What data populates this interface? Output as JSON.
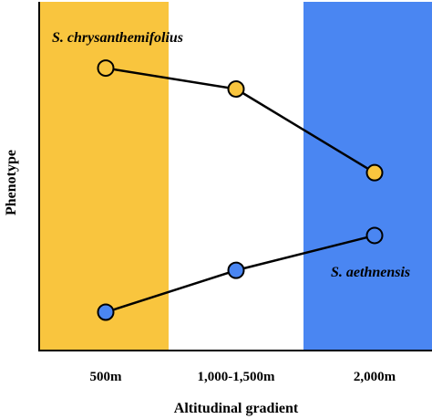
{
  "chart_data": {
    "type": "line",
    "categories": [
      "500m",
      "1,000-1,500m",
      "2,000m"
    ],
    "xlabel": "Altitudinal gradient",
    "ylabel": "Phenotype",
    "ylim": [
      0,
      10
    ],
    "grid": false,
    "background_bands": [
      {
        "category": "500m",
        "color": "#F9C53E"
      },
      {
        "category": "2,000m",
        "color": "#4A86F2"
      }
    ],
    "series": [
      {
        "name": "S. chrysanthemifolius",
        "values": [
          8.1,
          7.5,
          5.1
        ],
        "marker_colors": [
          "#F9C53E",
          "#F9C53E",
          "#F9C53E"
        ],
        "label_position": "top-left"
      },
      {
        "name": "S. aethnensis",
        "values": [
          1.1,
          2.3,
          3.3
        ],
        "marker_colors": [
          "#4A86F2",
          "#4A86F2",
          "#4A86F2"
        ],
        "label_position": "right"
      }
    ]
  }
}
